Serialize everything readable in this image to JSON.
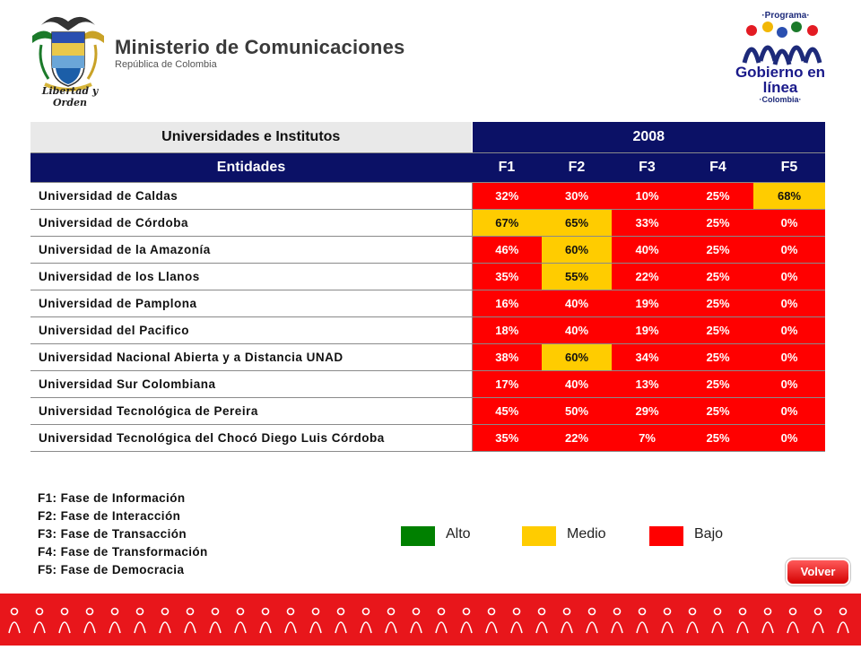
{
  "header": {
    "ministry_name": "Ministerio de Comunicaciones",
    "ministry_subtitle": "República de Colombia",
    "crest_motto": "Libertad y Orden",
    "program_label": "·Programa·",
    "program_title_line1": "Gobierno en línea",
    "program_country": "·Colombia·"
  },
  "table": {
    "category_header": "Universidades e Institutos",
    "year_header": "2008",
    "columns": [
      "Entidades",
      "F1",
      "F2",
      "F3",
      "F4",
      "F5"
    ],
    "rows": [
      {
        "entity": "Universidad  de Caldas",
        "values": [
          "32%",
          "30%",
          "10%",
          "25%",
          "68%"
        ],
        "levels": [
          "bajo",
          "bajo",
          "bajo",
          "bajo",
          "medio"
        ]
      },
      {
        "entity": "Universidad  de Córdoba",
        "values": [
          "67%",
          "65%",
          "33%",
          "25%",
          "0%"
        ],
        "levels": [
          "medio",
          "medio",
          "bajo",
          "bajo",
          "bajo"
        ]
      },
      {
        "entity": "Universidad  de la Amazonía",
        "values": [
          "46%",
          "60%",
          "40%",
          "25%",
          "0%"
        ],
        "levels": [
          "bajo",
          "medio",
          "bajo",
          "bajo",
          "bajo"
        ]
      },
      {
        "entity": "Universidad  de los Llanos",
        "values": [
          "35%",
          "55%",
          "22%",
          "25%",
          "0%"
        ],
        "levels": [
          "bajo",
          "medio",
          "bajo",
          "bajo",
          "bajo"
        ]
      },
      {
        "entity": "Universidad  de Pamplona",
        "values": [
          "16%",
          "40%",
          "19%",
          "25%",
          "0%"
        ],
        "levels": [
          "bajo",
          "bajo",
          "bajo",
          "bajo",
          "bajo"
        ]
      },
      {
        "entity": "Universidad  del Pacifico",
        "values": [
          "18%",
          "40%",
          "19%",
          "25%",
          "0%"
        ],
        "levels": [
          "bajo",
          "bajo",
          "bajo",
          "bajo",
          "bajo"
        ]
      },
      {
        "entity": "Universidad  Nacional  Abierta  y a Distancia  UNAD",
        "values": [
          "38%",
          "60%",
          "34%",
          "25%",
          "0%"
        ],
        "levels": [
          "bajo",
          "medio",
          "bajo",
          "bajo",
          "bajo"
        ]
      },
      {
        "entity": "Universidad  Sur Colombiana",
        "values": [
          "17%",
          "40%",
          "13%",
          "25%",
          "0%"
        ],
        "levels": [
          "bajo",
          "bajo",
          "bajo",
          "bajo",
          "bajo"
        ]
      },
      {
        "entity": "Universidad  Tecnológica  de Pereira",
        "values": [
          "45%",
          "50%",
          "29%",
          "25%",
          "0%"
        ],
        "levels": [
          "bajo",
          "bajo",
          "bajo",
          "bajo",
          "bajo"
        ]
      },
      {
        "entity": "Universidad  Tecnológica  del Chocó  Diego  Luis Córdoba",
        "values": [
          "35%",
          "22%",
          "7%",
          "25%",
          "0%"
        ],
        "levels": [
          "bajo",
          "bajo",
          "bajo",
          "bajo",
          "bajo"
        ]
      }
    ]
  },
  "phases": [
    "F1:  Fase  de  Información",
    "F2:  Fase  de  Interacción",
    "F3:  Fase  de  Transacción",
    "F4:  Fase  de  Transformación",
    "F5:  Fase  de  Democracia"
  ],
  "legend": {
    "alto": {
      "label": "Alto",
      "color": "#008000"
    },
    "medio": {
      "label": "Medio",
      "color": "#ffcc00"
    },
    "bajo": {
      "label": "Bajo",
      "color": "#ff0000"
    }
  },
  "buttons": {
    "volver": "Volver"
  },
  "colors": {
    "header_blue": "#0b1166",
    "footer_red": "#e8161b"
  }
}
